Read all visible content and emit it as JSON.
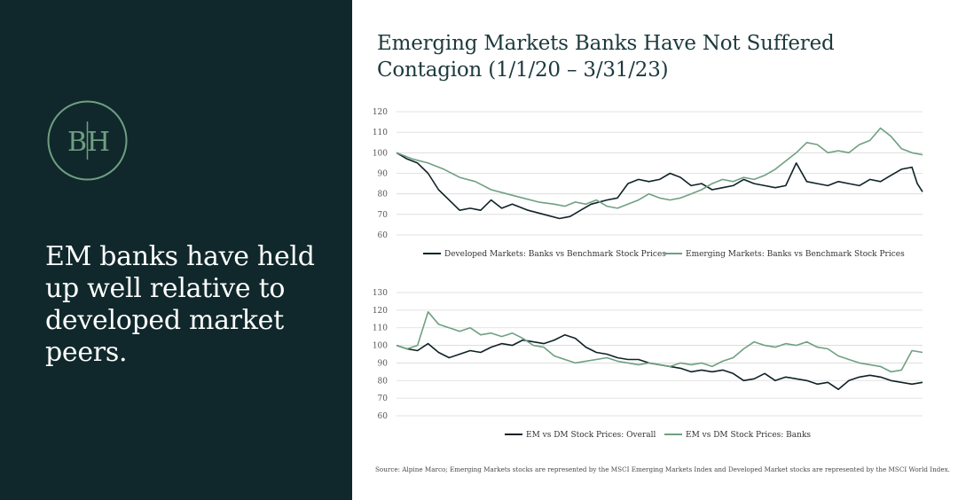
{
  "sidebar": {
    "logo_left": "B",
    "logo_right": "H",
    "headline": "EM banks have held up well relative to developed market peers."
  },
  "title": "Emerging Markets Banks Have Not Suffered Contagion (1/1/20 – 3/31/23)",
  "source": "Source: Alpine Marco; Emerging Markets stocks are represented by the MSCI Emerging Markets Index and Developed Market stocks are represented by the MSCI World Index.",
  "colors": {
    "sidebar_bg": "#10282b",
    "logo_green": "#6f9e82",
    "dark_series": "#0e2226",
    "green_series": "#6fa083",
    "grid": "#d9d9d9"
  },
  "chart_data": [
    {
      "type": "line",
      "ylim": [
        60,
        120
      ],
      "yticks": [
        60,
        70,
        80,
        90,
        100,
        110,
        120
      ],
      "x_range": [
        "2020-01-01",
        "2023-03-31"
      ],
      "grid": true,
      "legend_position": "bottom",
      "series": [
        {
          "name": "Developed Markets: Banks vs Benchmark Stock Prices",
          "color": "#0e2226",
          "points": [
            [
              0,
              100
            ],
            [
              0.02,
              97
            ],
            [
              0.04,
              95
            ],
            [
              0.06,
              90
            ],
            [
              0.08,
              82
            ],
            [
              0.1,
              77
            ],
            [
              0.12,
              72
            ],
            [
              0.14,
              73
            ],
            [
              0.16,
              72
            ],
            [
              0.18,
              77
            ],
            [
              0.2,
              73
            ],
            [
              0.22,
              75
            ],
            [
              0.25,
              72
            ],
            [
              0.28,
              70
            ],
            [
              0.31,
              68
            ],
            [
              0.33,
              69
            ],
            [
              0.35,
              72
            ],
            [
              0.37,
              75
            ],
            [
              0.4,
              77
            ],
            [
              0.42,
              78
            ],
            [
              0.44,
              85
            ],
            [
              0.46,
              87
            ],
            [
              0.48,
              86
            ],
            [
              0.5,
              87
            ],
            [
              0.52,
              90
            ],
            [
              0.54,
              88
            ],
            [
              0.56,
              84
            ],
            [
              0.58,
              85
            ],
            [
              0.6,
              82
            ],
            [
              0.62,
              83
            ],
            [
              0.64,
              84
            ],
            [
              0.66,
              87
            ],
            [
              0.68,
              85
            ],
            [
              0.7,
              84
            ],
            [
              0.72,
              83
            ],
            [
              0.74,
              84
            ],
            [
              0.76,
              95
            ],
            [
              0.78,
              86
            ],
            [
              0.8,
              85
            ],
            [
              0.82,
              84
            ],
            [
              0.84,
              86
            ],
            [
              0.86,
              85
            ],
            [
              0.88,
              84
            ],
            [
              0.9,
              87
            ],
            [
              0.92,
              86
            ],
            [
              0.94,
              89
            ],
            [
              0.96,
              92
            ],
            [
              0.98,
              93
            ],
            [
              0.99,
              85
            ],
            [
              1.0,
              81
            ]
          ]
        },
        {
          "name": "Emerging Markets: Banks vs Benchmark Stock Prices",
          "color": "#6fa083",
          "points": [
            [
              0,
              100
            ],
            [
              0.03,
              97
            ],
            [
              0.06,
              95
            ],
            [
              0.09,
              92
            ],
            [
              0.12,
              88
            ],
            [
              0.15,
              86
            ],
            [
              0.18,
              82
            ],
            [
              0.21,
              80
            ],
            [
              0.24,
              78
            ],
            [
              0.27,
              76
            ],
            [
              0.3,
              75
            ],
            [
              0.32,
              74
            ],
            [
              0.34,
              76
            ],
            [
              0.36,
              75
            ],
            [
              0.38,
              77
            ],
            [
              0.4,
              74
            ],
            [
              0.42,
              73
            ],
            [
              0.44,
              75
            ],
            [
              0.46,
              77
            ],
            [
              0.48,
              80
            ],
            [
              0.5,
              78
            ],
            [
              0.52,
              77
            ],
            [
              0.54,
              78
            ],
            [
              0.56,
              80
            ],
            [
              0.58,
              82
            ],
            [
              0.6,
              85
            ],
            [
              0.62,
              87
            ],
            [
              0.64,
              86
            ],
            [
              0.66,
              88
            ],
            [
              0.68,
              87
            ],
            [
              0.7,
              89
            ],
            [
              0.72,
              92
            ],
            [
              0.74,
              96
            ],
            [
              0.76,
              100
            ],
            [
              0.78,
              105
            ],
            [
              0.8,
              104
            ],
            [
              0.82,
              100
            ],
            [
              0.84,
              101
            ],
            [
              0.86,
              100
            ],
            [
              0.88,
              104
            ],
            [
              0.9,
              106
            ],
            [
              0.92,
              112
            ],
            [
              0.94,
              108
            ],
            [
              0.96,
              102
            ],
            [
              0.98,
              100
            ],
            [
              1.0,
              99
            ]
          ]
        }
      ]
    },
    {
      "type": "line",
      "ylim": [
        60,
        130
      ],
      "yticks": [
        60,
        70,
        80,
        90,
        100,
        110,
        120,
        130
      ],
      "x_range": [
        "2020-01-01",
        "2023-03-31"
      ],
      "grid": true,
      "legend_position": "bottom",
      "series": [
        {
          "name": "EM vs DM Stock Prices: Overall",
          "color": "#0e2226",
          "points": [
            [
              0,
              100
            ],
            [
              0.02,
              98
            ],
            [
              0.04,
              97
            ],
            [
              0.06,
              101
            ],
            [
              0.08,
              96
            ],
            [
              0.1,
              93
            ],
            [
              0.12,
              95
            ],
            [
              0.14,
              97
            ],
            [
              0.16,
              96
            ],
            [
              0.18,
              99
            ],
            [
              0.2,
              101
            ],
            [
              0.22,
              100
            ],
            [
              0.24,
              103
            ],
            [
              0.26,
              102
            ],
            [
              0.28,
              101
            ],
            [
              0.3,
              103
            ],
            [
              0.32,
              106
            ],
            [
              0.34,
              104
            ],
            [
              0.36,
              99
            ],
            [
              0.38,
              96
            ],
            [
              0.4,
              95
            ],
            [
              0.42,
              93
            ],
            [
              0.44,
              92
            ],
            [
              0.46,
              92
            ],
            [
              0.48,
              90
            ],
            [
              0.5,
              89
            ],
            [
              0.52,
              88
            ],
            [
              0.54,
              87
            ],
            [
              0.56,
              85
            ],
            [
              0.58,
              86
            ],
            [
              0.6,
              85
            ],
            [
              0.62,
              86
            ],
            [
              0.64,
              84
            ],
            [
              0.66,
              80
            ],
            [
              0.68,
              81
            ],
            [
              0.7,
              84
            ],
            [
              0.72,
              80
            ],
            [
              0.74,
              82
            ],
            [
              0.76,
              81
            ],
            [
              0.78,
              80
            ],
            [
              0.8,
              78
            ],
            [
              0.82,
              79
            ],
            [
              0.84,
              75
            ],
            [
              0.86,
              80
            ],
            [
              0.88,
              82
            ],
            [
              0.9,
              83
            ],
            [
              0.92,
              82
            ],
            [
              0.94,
              80
            ],
            [
              0.96,
              79
            ],
            [
              0.98,
              78
            ],
            [
              1.0,
              79
            ]
          ]
        },
        {
          "name": "EM vs DM Stock Prices: Banks",
          "color": "#6fa083",
          "points": [
            [
              0,
              100
            ],
            [
              0.02,
              98
            ],
            [
              0.04,
              100
            ],
            [
              0.06,
              119
            ],
            [
              0.08,
              112
            ],
            [
              0.1,
              110
            ],
            [
              0.12,
              108
            ],
            [
              0.14,
              110
            ],
            [
              0.16,
              106
            ],
            [
              0.18,
              107
            ],
            [
              0.2,
              105
            ],
            [
              0.22,
              107
            ],
            [
              0.24,
              104
            ],
            [
              0.26,
              100
            ],
            [
              0.28,
              99
            ],
            [
              0.3,
              94
            ],
            [
              0.32,
              92
            ],
            [
              0.34,
              90
            ],
            [
              0.36,
              91
            ],
            [
              0.38,
              92
            ],
            [
              0.4,
              93
            ],
            [
              0.42,
              91
            ],
            [
              0.44,
              90
            ],
            [
              0.46,
              89
            ],
            [
              0.48,
              90
            ],
            [
              0.5,
              89
            ],
            [
              0.52,
              88
            ],
            [
              0.54,
              90
            ],
            [
              0.56,
              89
            ],
            [
              0.58,
              90
            ],
            [
              0.6,
              88
            ],
            [
              0.62,
              91
            ],
            [
              0.64,
              93
            ],
            [
              0.66,
              98
            ],
            [
              0.68,
              102
            ],
            [
              0.7,
              100
            ],
            [
              0.72,
              99
            ],
            [
              0.74,
              101
            ],
            [
              0.76,
              100
            ],
            [
              0.78,
              102
            ],
            [
              0.8,
              99
            ],
            [
              0.82,
              98
            ],
            [
              0.84,
              94
            ],
            [
              0.86,
              92
            ],
            [
              0.88,
              90
            ],
            [
              0.9,
              89
            ],
            [
              0.92,
              88
            ],
            [
              0.94,
              85
            ],
            [
              0.96,
              86
            ],
            [
              0.98,
              97
            ],
            [
              1.0,
              96
            ]
          ]
        }
      ]
    }
  ]
}
